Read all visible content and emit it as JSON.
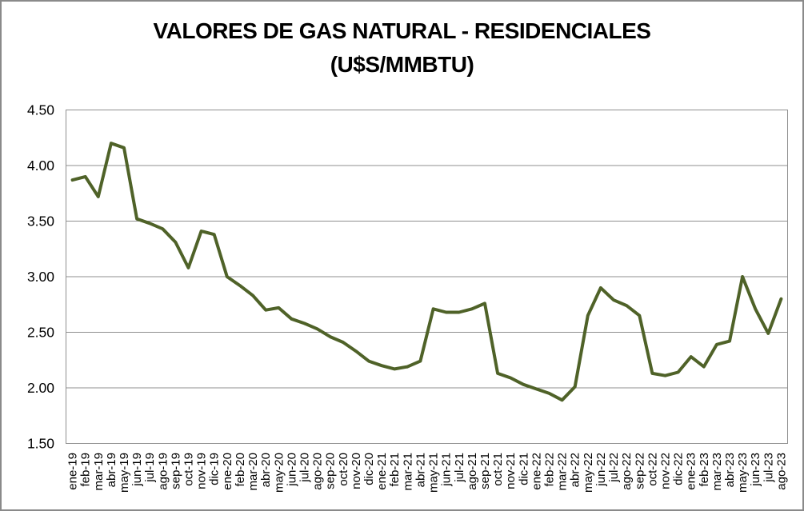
{
  "window": {
    "background_color": "#ffffff",
    "border_color": "#8a8a8a"
  },
  "chart_data": {
    "type": "line",
    "title_line1": "VALORES DE GAS NATURAL - RESIDENCIALES",
    "title_line2": "(U$S/MMBTU)",
    "xlabel": "",
    "ylabel": "",
    "legend": "none",
    "grid": true,
    "ylim": [
      1.5,
      4.5
    ],
    "ytick_values": [
      1.5,
      2.0,
      2.5,
      3.0,
      3.5,
      4.0,
      4.5
    ],
    "ytick_labels": [
      "1.50",
      "2.00",
      "2.50",
      "3.00",
      "3.50",
      "4.00",
      "4.50"
    ],
    "line_color": "#4f6228",
    "gridline_color": "#8f8f8f",
    "axis_text_color": "#000000",
    "categories": [
      "ene-19",
      "feb-19",
      "mar-19",
      "abr-19",
      "may-19",
      "jun-19",
      "jul-19",
      "ago-19",
      "sep-19",
      "oct-19",
      "nov-19",
      "dic-19",
      "ene-20",
      "feb-20",
      "mar-20",
      "abr-20",
      "may-20",
      "jun-20",
      "jul-20",
      "ago-20",
      "sep-20",
      "oct-20",
      "nov-20",
      "dic-20",
      "ene-21",
      "feb-21",
      "mar-21",
      "abr-21",
      "may-21",
      "jun-21",
      "jul-21",
      "ago-21",
      "sep-21",
      "oct-21",
      "nov-21",
      "dic-21",
      "ene-22",
      "feb-22",
      "mar-22",
      "abr-22",
      "may-22",
      "jun-22",
      "jul-22",
      "ago-22",
      "sep-22",
      "oct-22",
      "nov-22",
      "dic-22",
      "ene-23",
      "feb-23",
      "mar-23",
      "abr-23",
      "may-23",
      "jun-23",
      "jul-23",
      "ago-23"
    ],
    "values": [
      3.87,
      3.9,
      3.72,
      4.2,
      4.16,
      3.52,
      3.48,
      3.43,
      3.31,
      3.08,
      3.41,
      3.38,
      3.0,
      2.92,
      2.83,
      2.7,
      2.72,
      2.62,
      2.58,
      2.53,
      2.46,
      2.41,
      2.33,
      2.24,
      2.2,
      2.17,
      2.19,
      2.24,
      2.71,
      2.68,
      2.68,
      2.71,
      2.76,
      2.13,
      2.09,
      2.03,
      1.99,
      1.95,
      1.89,
      2.01,
      2.65,
      2.9,
      2.79,
      2.74,
      2.65,
      2.13,
      2.11,
      2.14,
      2.28,
      2.19,
      2.39,
      2.42,
      3.0,
      2.71,
      2.49,
      2.8
    ]
  }
}
